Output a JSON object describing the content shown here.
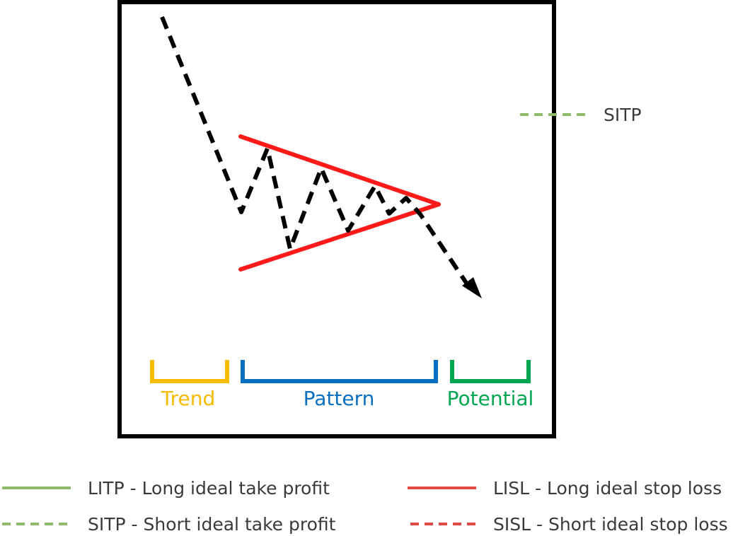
{
  "pattern": {
    "labels": {
      "trend": "Trend",
      "pattern": "Pattern",
      "potential": "Potential"
    }
  },
  "side_legend": {
    "label": "SITP"
  },
  "legend": [
    {
      "label": "LITP - Long ideal take profit",
      "color": "#8dbb6a",
      "style": "solid"
    },
    {
      "label": "SITP - Short ideal take profit",
      "color": "#8dbb6a",
      "style": "dashed"
    },
    {
      "label": "LISL - Long ideal stop loss",
      "color": "#e04b45",
      "style": "solid"
    },
    {
      "label": "SISL - Short ideal stop loss",
      "color": "#e04b45",
      "style": "dashed"
    }
  ],
  "colors": {
    "frame": "#000000",
    "price_path": "#000000",
    "triangle": "#ff1a1a",
    "trend": "#f5bb00",
    "pattern": "#0b6fbf",
    "potential": "#00a652",
    "legend_green": "#8dbb6a",
    "legend_red": "#e04b45",
    "legend_text": "#3a3a3a"
  }
}
